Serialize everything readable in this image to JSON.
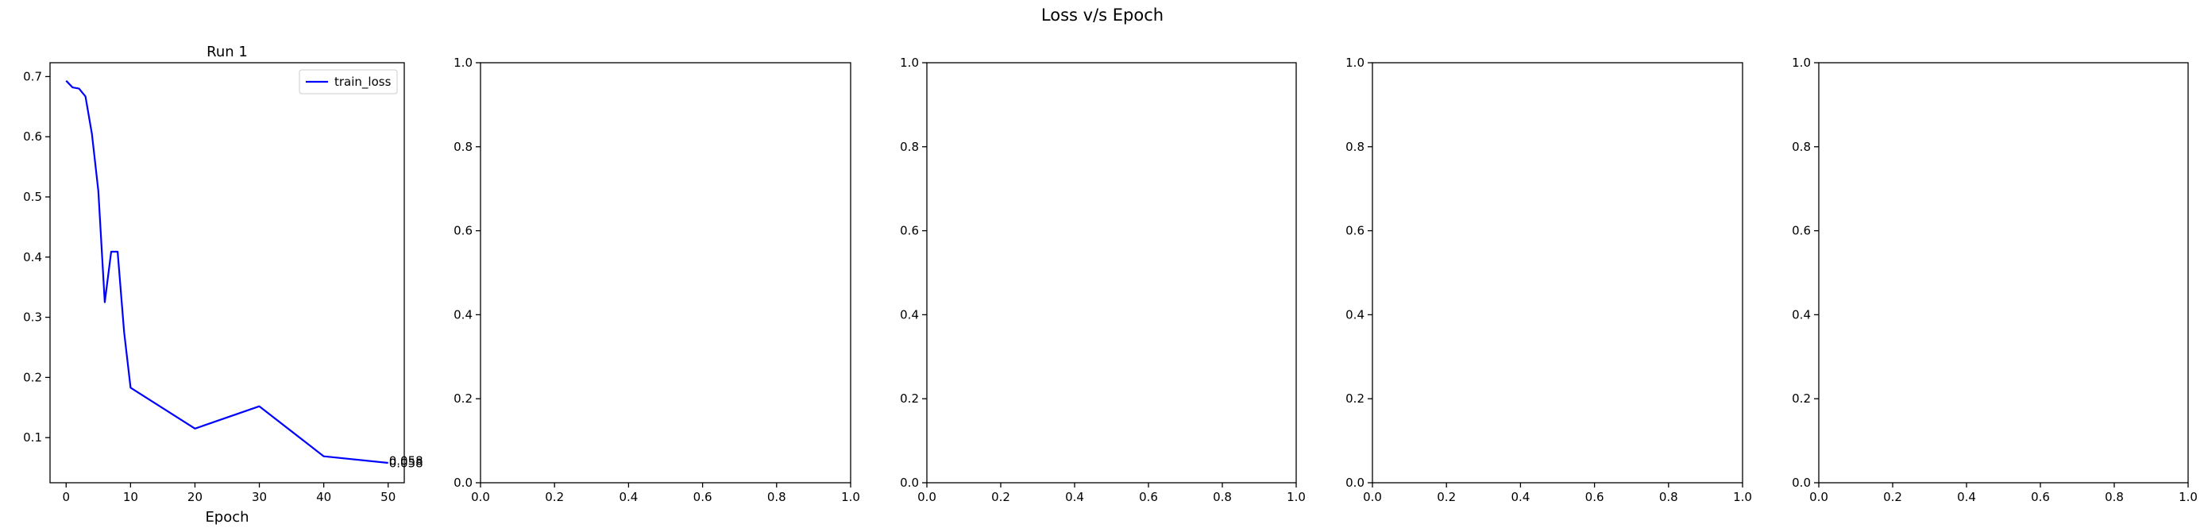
{
  "figure": {
    "suptitle": "Loss v/s Epoch"
  },
  "colors": {
    "line": "#0000ff",
    "axes": "#000000",
    "background": "#ffffff"
  },
  "chart_data": [
    {
      "type": "line",
      "title": "Run 1",
      "xlabel": "Epoch",
      "ylabel": "",
      "xlim": [
        -2.5,
        52.5
      ],
      "ylim": [
        0.025,
        0.723
      ],
      "xticks": [
        0,
        10,
        20,
        30,
        40,
        50
      ],
      "yticks": [
        0.1,
        0.2,
        0.3,
        0.4,
        0.5,
        0.6,
        0.7
      ],
      "grid": false,
      "legend": "top-right",
      "series": [
        {
          "name": "train_loss",
          "color": "#0000ff",
          "x": [
            0,
            1,
            2,
            3,
            4,
            5,
            6,
            7,
            8,
            9,
            10,
            20,
            30,
            40,
            50
          ],
          "y": [
            0.693,
            0.682,
            0.68,
            0.667,
            0.605,
            0.51,
            0.325,
            0.409,
            0.409,
            0.275,
            0.183,
            0.115,
            0.152,
            0.069,
            0.058
          ]
        }
      ],
      "annotations": [
        {
          "x": 50,
          "y": 0.06,
          "text": "0.058"
        },
        {
          "x": 50,
          "y": 0.056,
          "text": "0.058"
        }
      ]
    },
    {
      "type": "line",
      "title": "",
      "xlabel": "",
      "ylabel": "",
      "xlim": [
        0,
        1
      ],
      "ylim": [
        0,
        1
      ],
      "xticks": [
        0.0,
        0.2,
        0.4,
        0.6,
        0.8,
        1.0
      ],
      "yticks": [
        0.0,
        0.2,
        0.4,
        0.6,
        0.8,
        1.0
      ],
      "grid": false,
      "series": []
    },
    {
      "type": "line",
      "title": "",
      "xlabel": "",
      "ylabel": "",
      "xlim": [
        0,
        1
      ],
      "ylim": [
        0,
        1
      ],
      "xticks": [
        0.0,
        0.2,
        0.4,
        0.6,
        0.8,
        1.0
      ],
      "yticks": [
        0.0,
        0.2,
        0.4,
        0.6,
        0.8,
        1.0
      ],
      "grid": false,
      "series": []
    },
    {
      "type": "line",
      "title": "",
      "xlabel": "",
      "ylabel": "",
      "xlim": [
        0,
        1
      ],
      "ylim": [
        0,
        1
      ],
      "xticks": [
        0.0,
        0.2,
        0.4,
        0.6,
        0.8,
        1.0
      ],
      "yticks": [
        0.0,
        0.2,
        0.4,
        0.6,
        0.8,
        1.0
      ],
      "grid": false,
      "series": []
    },
    {
      "type": "line",
      "title": "",
      "xlabel": "",
      "ylabel": "",
      "xlim": [
        0,
        1
      ],
      "ylim": [
        0,
        1
      ],
      "xticks": [
        0.0,
        0.2,
        0.4,
        0.6,
        0.8,
        1.0
      ],
      "yticks": [
        0.0,
        0.2,
        0.4,
        0.6,
        0.8,
        1.0
      ],
      "grid": false,
      "series": []
    }
  ]
}
